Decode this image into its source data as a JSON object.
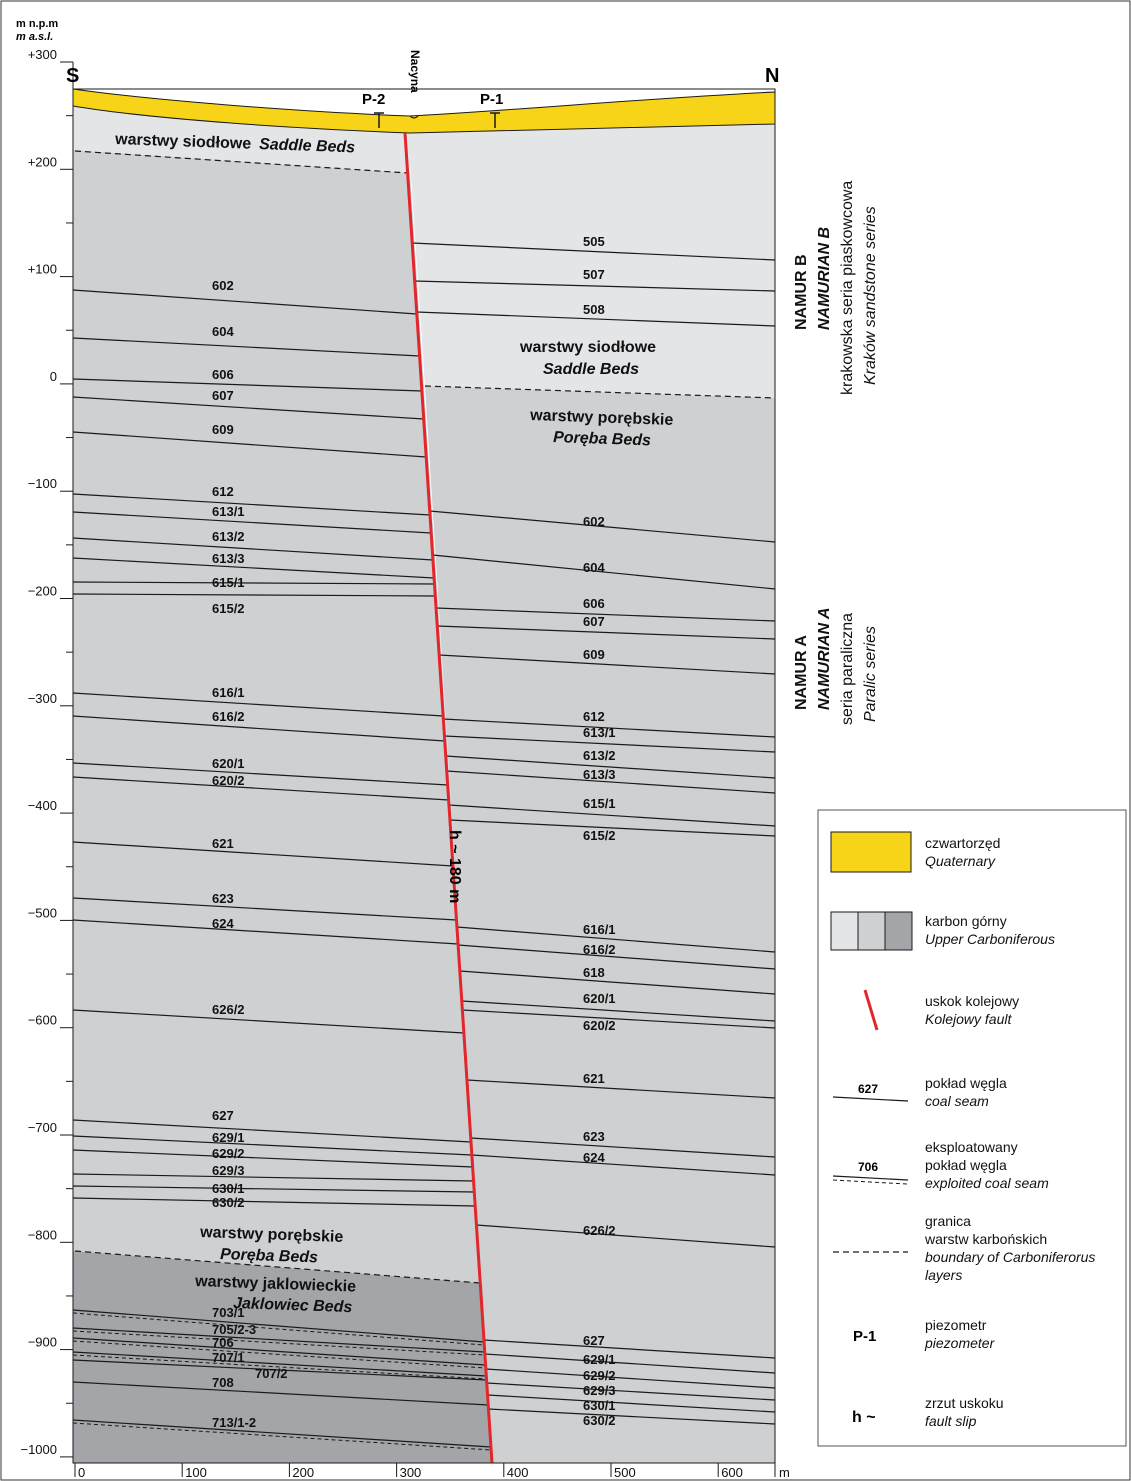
{
  "axis": {
    "unit_pl": "m n.p.m",
    "unit_en": "m a.s.l.",
    "y_ticks": [
      "+300",
      "+200",
      "+100",
      "0",
      "−100",
      "−200",
      "−300",
      "−400",
      "−500",
      "−600",
      "−700",
      "−800",
      "−900",
      "−1000"
    ],
    "x_ticks": [
      "0",
      "100",
      "200",
      "300",
      "400",
      "500",
      "600"
    ],
    "x_unit": "m"
  },
  "section": {
    "south": "S",
    "north": "N",
    "piezometers": [
      "P-2",
      "P-1"
    ],
    "river": "Nacyna",
    "fault_slip": "h ~ 180 m"
  },
  "beds": {
    "saddle_top": "warstwy siodłowe",
    "saddle_top_en": "Saddle Beds",
    "saddle_north_pl": "warstwy siodłowe",
    "saddle_north_en": "Saddle Beds",
    "poreba_north_pl": "warstwy porębskie",
    "poreba_north_en": "Poręba Beds",
    "poreba_south_pl": "warstwy porębskie",
    "poreba_south_en": "Poręba Beds",
    "jaklowiec_pl": "warstwy jaklowieckie",
    "jaklowiec_en": "Jaklowiec Beds"
  },
  "seams_left": [
    "602",
    "604",
    "606",
    "607",
    "609",
    "612",
    "613/1",
    "613/2",
    "613/3",
    "615/1",
    "615/2",
    "616/1",
    "616/2",
    "620/1",
    "620/2",
    "621",
    "623",
    "624",
    "626/2",
    "627",
    "629/1",
    "629/2",
    "629/3",
    "630/1",
    "630/2",
    "703/1",
    "705/2-3",
    "706",
    "707/1",
    "707/2",
    "708",
    "713/1-2"
  ],
  "seams_right": [
    "505",
    "507",
    "508",
    "602",
    "604",
    "606",
    "607",
    "609",
    "612",
    "613/1",
    "613/2",
    "613/3",
    "615/1",
    "615/2",
    "616/1",
    "616/2",
    "618",
    "620/1",
    "620/2",
    "621",
    "623",
    "624",
    "626/2",
    "627",
    "629/1",
    "629/2",
    "629/3",
    "630/1",
    "630/2"
  ],
  "stratigraphy": {
    "namur_b": "NAMUR B",
    "namurian_b": "NAMURIAN B",
    "krakow_pl": "krakowska seria piaskowcowa",
    "krakow_en": "Kraków sandstone series",
    "namur_a": "NAMUR A",
    "namurian_a": "NAMURIAN A",
    "paralic_pl": "seria paraliczna",
    "paralic_en": "Paralic series"
  },
  "legend": {
    "quaternary_pl": "czwartorzęd",
    "quaternary_en": "Quaternary",
    "carbon_pl": "karbon górny",
    "carbon_en": "Upper Carboniferous",
    "fault_pl": "uskok kolejowy",
    "fault_en": "Kolejowy fault",
    "seam_num": "627",
    "seam_pl": "pokład węgla",
    "seam_en": "coal seam",
    "exploited_num": "706",
    "exploited_pl1": "eksploatowany",
    "exploited_pl2": "pokład węgla",
    "exploited_en": "exploited coal seam",
    "boundary_pl1": "granica",
    "boundary_pl2": "warstw karbońskich",
    "boundary_en1": "boundary of Carboniferorus",
    "boundary_en2": "layers",
    "piezo_sym": "P-1",
    "piezo_pl": "piezometr",
    "piezo_en": "piezometer",
    "slip_sym": "h ~",
    "slip_pl": "zrzut uskoku",
    "slip_en": "fault slip"
  },
  "colors": {
    "quaternary": "#f7d417",
    "saddle": "#e4e5e7",
    "poreba": "#cfd0d2",
    "jaklowiec": "#a3a5a8",
    "fault": "#e3262b",
    "line": "#1a1a1a"
  }
}
